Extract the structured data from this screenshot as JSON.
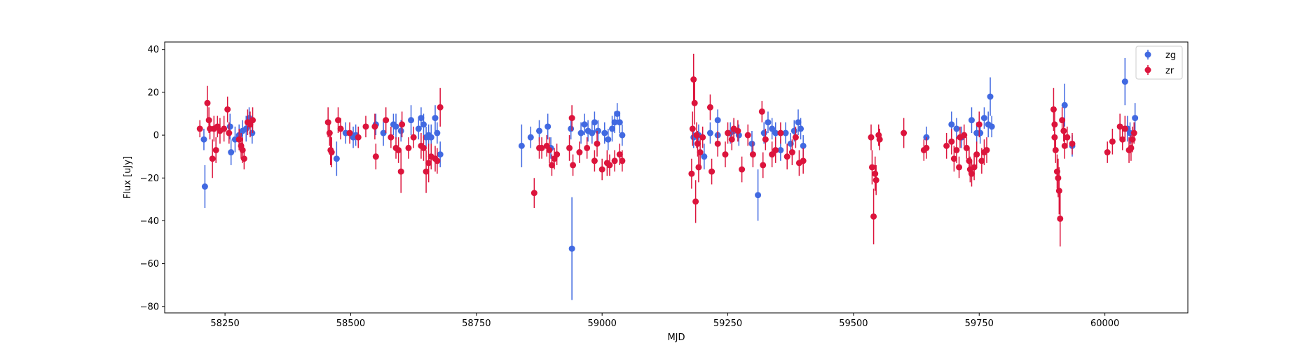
{
  "chart_data": {
    "type": "scatter",
    "title": "",
    "xlabel": "MJD",
    "ylabel": "Flux [uJy]",
    "xlim": [
      58130,
      60165
    ],
    "ylim": [
      -83,
      43.5
    ],
    "x_ticks": [
      58250,
      58500,
      58750,
      59000,
      59250,
      59500,
      59750,
      60000
    ],
    "y_ticks": [
      -80,
      -60,
      -40,
      -20,
      0,
      20,
      40
    ],
    "grid": false,
    "legend": {
      "placement": "top-right",
      "entries": [
        "zg",
        "zr"
      ]
    },
    "series": [
      {
        "name": "zg",
        "color": "#4169e1",
        "points": [
          [
            58208,
            -2,
            5
          ],
          [
            58210,
            -24,
            10
          ],
          [
            58260,
            4,
            6
          ],
          [
            58262,
            -8,
            6
          ],
          [
            58270,
            -2,
            6
          ],
          [
            58278,
            0,
            5
          ],
          [
            58285,
            2,
            5
          ],
          [
            58292,
            3,
            6
          ],
          [
            58298,
            8,
            5
          ],
          [
            58304,
            1,
            5
          ],
          [
            58472,
            -11,
            8
          ],
          [
            58490,
            1,
            5
          ],
          [
            58505,
            -1,
            5
          ],
          [
            58510,
            0,
            5
          ],
          [
            58550,
            5,
            5
          ],
          [
            58565,
            1,
            6
          ],
          [
            58585,
            5,
            5
          ],
          [
            58590,
            4,
            6
          ],
          [
            58600,
            2,
            5
          ],
          [
            58620,
            7,
            7
          ],
          [
            58635,
            3,
            5
          ],
          [
            58640,
            8,
            5
          ],
          [
            58645,
            5,
            5
          ],
          [
            58650,
            -1,
            5
          ],
          [
            58655,
            0,
            5
          ],
          [
            58660,
            -1,
            6
          ],
          [
            58668,
            8,
            6
          ],
          [
            58672,
            1,
            5
          ],
          [
            58678,
            -9,
            6
          ],
          [
            58840,
            -5,
            10
          ],
          [
            58858,
            -1,
            5
          ],
          [
            58875,
            2,
            5
          ],
          [
            58892,
            4,
            6
          ],
          [
            58898,
            -6,
            5
          ],
          [
            58938,
            3,
            5
          ],
          [
            58940,
            -53,
            24
          ],
          [
            58958,
            1,
            5
          ],
          [
            58965,
            5,
            5
          ],
          [
            58972,
            2,
            5
          ],
          [
            58980,
            1,
            5
          ],
          [
            58985,
            6,
            5
          ],
          [
            58992,
            2,
            5
          ],
          [
            59005,
            1,
            5
          ],
          [
            59012,
            -2,
            5
          ],
          [
            59020,
            3,
            6
          ],
          [
            59025,
            6,
            5
          ],
          [
            59030,
            10,
            5
          ],
          [
            59035,
            6,
            5
          ],
          [
            59040,
            0,
            5
          ],
          [
            59182,
            -1,
            5
          ],
          [
            59192,
            0,
            5
          ],
          [
            59203,
            -10,
            6
          ],
          [
            59215,
            1,
            5
          ],
          [
            59230,
            0,
            6
          ],
          [
            59230,
            7,
            5
          ],
          [
            59255,
            1,
            5
          ],
          [
            59262,
            2,
            5
          ],
          [
            59272,
            0,
            5
          ],
          [
            59298,
            -4,
            6
          ],
          [
            59310,
            -28,
            12
          ],
          [
            59322,
            1,
            5
          ],
          [
            59330,
            6,
            5
          ],
          [
            59338,
            3,
            5
          ],
          [
            59345,
            1,
            5
          ],
          [
            59355,
            -7,
            5
          ],
          [
            59365,
            1,
            5
          ],
          [
            59375,
            -4,
            5
          ],
          [
            59382,
            2,
            5
          ],
          [
            59390,
            6,
            6
          ],
          [
            59395,
            3,
            5
          ],
          [
            59400,
            -5,
            5
          ],
          [
            59645,
            -1,
            5
          ],
          [
            59695,
            5,
            6
          ],
          [
            59705,
            3,
            5
          ],
          [
            59715,
            -1,
            5
          ],
          [
            59735,
            7,
            6
          ],
          [
            59745,
            1,
            5
          ],
          [
            59752,
            1,
            5
          ],
          [
            59760,
            8,
            5
          ],
          [
            59768,
            5,
            6
          ],
          [
            59772,
            18,
            9
          ],
          [
            59775,
            4,
            5
          ],
          [
            59920,
            14,
            10
          ],
          [
            59935,
            -5,
            5
          ],
          [
            60040,
            25,
            11
          ],
          [
            60045,
            3,
            6
          ],
          [
            60050,
            1,
            5
          ],
          [
            60060,
            8,
            7
          ]
        ]
      },
      {
        "name": "zr",
        "color": "#dc143c",
        "points": [
          [
            58200,
            3,
            4
          ],
          [
            58215,
            15,
            8
          ],
          [
            58218,
            7,
            6
          ],
          [
            58220,
            3,
            5
          ],
          [
            58225,
            -11,
            9
          ],
          [
            58228,
            3,
            6
          ],
          [
            58232,
            -7,
            6
          ],
          [
            58235,
            4,
            5
          ],
          [
            58240,
            2,
            6
          ],
          [
            58248,
            3,
            6
          ],
          [
            58255,
            12,
            6
          ],
          [
            58258,
            1,
            5
          ],
          [
            58278,
            -2,
            5
          ],
          [
            58282,
            -5,
            6
          ],
          [
            58285,
            -7,
            6
          ],
          [
            58288,
            -11,
            5
          ],
          [
            58295,
            6,
            6
          ],
          [
            58300,
            5,
            6
          ],
          [
            58305,
            7,
            6
          ],
          [
            58455,
            6,
            7
          ],
          [
            58458,
            1,
            6
          ],
          [
            58460,
            -7,
            7
          ],
          [
            58462,
            -8,
            7
          ],
          [
            58475,
            7,
            6
          ],
          [
            58480,
            3,
            5
          ],
          [
            58498,
            1,
            5
          ],
          [
            58515,
            -1,
            5
          ],
          [
            58530,
            4,
            5
          ],
          [
            58548,
            4,
            6
          ],
          [
            58550,
            -10,
            6
          ],
          [
            58570,
            7,
            6
          ],
          [
            58580,
            -1,
            5
          ],
          [
            58590,
            -6,
            5
          ],
          [
            58595,
            -7,
            6
          ],
          [
            58600,
            -17,
            10
          ],
          [
            58602,
            5,
            6
          ],
          [
            58615,
            -6,
            5
          ],
          [
            58625,
            -1,
            5
          ],
          [
            58640,
            -5,
            6
          ],
          [
            58645,
            -6,
            6
          ],
          [
            58650,
            -17,
            10
          ],
          [
            58655,
            -13,
            9
          ],
          [
            58660,
            -10,
            6
          ],
          [
            58668,
            -11,
            6
          ],
          [
            58672,
            -12,
            6
          ],
          [
            58678,
            13,
            9
          ],
          [
            58865,
            -27,
            7
          ],
          [
            58875,
            -6,
            5
          ],
          [
            58880,
            -6,
            5
          ],
          [
            58890,
            -5,
            5
          ],
          [
            58895,
            -7,
            6
          ],
          [
            58900,
            -14,
            5
          ],
          [
            58905,
            -11,
            5
          ],
          [
            58910,
            -9,
            5
          ],
          [
            58935,
            -6,
            6
          ],
          [
            58940,
            8,
            6
          ],
          [
            58942,
            -14,
            5
          ],
          [
            58955,
            -8,
            5
          ],
          [
            58970,
            -6,
            5
          ],
          [
            58985,
            -12,
            5
          ],
          [
            58990,
            -4,
            6
          ],
          [
            59000,
            -16,
            5
          ],
          [
            59010,
            -13,
            6
          ],
          [
            59015,
            -14,
            5
          ],
          [
            59025,
            -12,
            5
          ],
          [
            59035,
            -9,
            5
          ],
          [
            59040,
            -12,
            5
          ],
          [
            59178,
            -18,
            7
          ],
          [
            59180,
            3,
            8
          ],
          [
            59182,
            26,
            12
          ],
          [
            59184,
            15,
            10
          ],
          [
            59186,
            -31,
            10
          ],
          [
            59188,
            0,
            6
          ],
          [
            59190,
            -4,
            6
          ],
          [
            59192,
            -15,
            7
          ],
          [
            59195,
            -8,
            6
          ],
          [
            59200,
            -1,
            5
          ],
          [
            59215,
            13,
            6
          ],
          [
            59218,
            -17,
            6
          ],
          [
            59230,
            -4,
            6
          ],
          [
            59245,
            -9,
            6
          ],
          [
            59250,
            1,
            5
          ],
          [
            59258,
            -2,
            5
          ],
          [
            59262,
            3,
            5
          ],
          [
            59270,
            2,
            5
          ],
          [
            59278,
            -16,
            6
          ],
          [
            59290,
            0,
            5
          ],
          [
            59300,
            -9,
            6
          ],
          [
            59318,
            11,
            5
          ],
          [
            59320,
            -14,
            6
          ],
          [
            59325,
            -2,
            5
          ],
          [
            59338,
            -9,
            6
          ],
          [
            59345,
            -7,
            6
          ],
          [
            59355,
            1,
            5
          ],
          [
            59368,
            -10,
            6
          ],
          [
            59378,
            -8,
            6
          ],
          [
            59385,
            -1,
            5
          ],
          [
            59392,
            -13,
            6
          ],
          [
            59400,
            -12,
            6
          ],
          [
            59535,
            -1,
            6
          ],
          [
            59537,
            -15,
            8
          ],
          [
            59540,
            -38,
            13
          ],
          [
            59543,
            -18,
            8
          ],
          [
            59545,
            -21,
            7
          ],
          [
            59550,
            0,
            5
          ],
          [
            59552,
            -2,
            5
          ],
          [
            59600,
            1,
            7
          ],
          [
            59640,
            -7,
            5
          ],
          [
            59645,
            -6,
            5
          ],
          [
            59685,
            -5,
            6
          ],
          [
            59695,
            -3,
            6
          ],
          [
            59700,
            -11,
            6
          ],
          [
            59705,
            -7,
            6
          ],
          [
            59710,
            -15,
            5
          ],
          [
            59712,
            -1,
            5
          ],
          [
            59720,
            0,
            5
          ],
          [
            59725,
            -6,
            5
          ],
          [
            59730,
            -12,
            6
          ],
          [
            59732,
            -16,
            6
          ],
          [
            59735,
            -18,
            6
          ],
          [
            59740,
            -15,
            6
          ],
          [
            59745,
            -9,
            6
          ],
          [
            59750,
            5,
            6
          ],
          [
            59755,
            -12,
            6
          ],
          [
            59760,
            -8,
            6
          ],
          [
            59765,
            -7,
            6
          ],
          [
            59898,
            12,
            10
          ],
          [
            59900,
            5,
            7
          ],
          [
            59900,
            -1,
            6
          ],
          [
            59902,
            -7,
            6
          ],
          [
            59905,
            -17,
            8
          ],
          [
            59907,
            -20,
            9
          ],
          [
            59909,
            -26,
            11
          ],
          [
            59911,
            -39,
            13
          ],
          [
            59915,
            7,
            6
          ],
          [
            59918,
            2,
            5
          ],
          [
            59920,
            -5,
            6
          ],
          [
            59925,
            -1,
            5
          ],
          [
            59935,
            -4,
            5
          ],
          [
            60005,
            -8,
            5
          ],
          [
            60015,
            -3,
            6
          ],
          [
            60030,
            4,
            6
          ],
          [
            60035,
            -2,
            5
          ],
          [
            60040,
            3,
            6
          ],
          [
            60048,
            -7,
            6
          ],
          [
            60052,
            -6,
            6
          ],
          [
            60055,
            -2,
            6
          ],
          [
            60058,
            1,
            5
          ]
        ]
      }
    ]
  }
}
